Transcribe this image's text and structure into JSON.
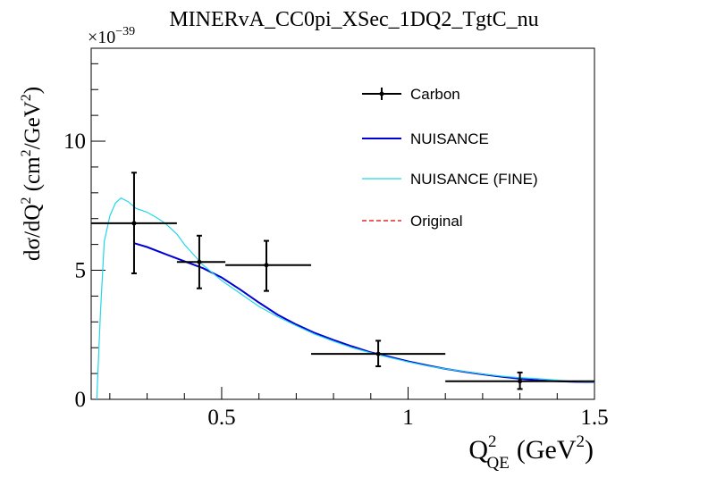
{
  "chart_data": {
    "type": "line",
    "title": "MINERvA_CC0pi_XSec_1DQ2_TgtC_nu",
    "xlabel": "Q",
    "xlabel_sub": "QE",
    "xlabel_sup": "2",
    "xlabel_unit_pre": "(GeV",
    "xlabel_unit_sup": "2",
    "xlabel_unit_post": ")",
    "ylabel": "dσ/dQ",
    "ylabel_sup": "2",
    "ylabel_unit_pre": " (cm",
    "ylabel_unit_sup1": "2",
    "ylabel_unit_mid": "/GeV",
    "ylabel_unit_sup2": "2",
    "ylabel_unit_post": ")",
    "y_exponent_base": "×10",
    "y_exponent": "−39",
    "xlim": [
      0.15,
      1.5
    ],
    "ylim": [
      0,
      13.6
    ],
    "x_ticks": [
      0.5,
      1,
      1.5
    ],
    "x_tick_labels": [
      "0.5",
      "1",
      "1.5"
    ],
    "y_ticks": [
      0,
      5,
      10
    ],
    "y_tick_labels": [
      "0",
      "5",
      "10"
    ],
    "grid": false,
    "legend_position": "top-right",
    "series": [
      {
        "name": "Carbon",
        "kind": "points",
        "color": "#000000",
        "points": [
          {
            "x": 0.265,
            "y": 6.82,
            "xlo": 0.15,
            "xhi": 0.38,
            "ylo": 4.88,
            "yhi": 8.78
          },
          {
            "x": 0.44,
            "y": 5.32,
            "xlo": 0.38,
            "xhi": 0.51,
            "ylo": 4.3,
            "yhi": 6.34
          },
          {
            "x": 0.62,
            "y": 5.2,
            "xlo": 0.51,
            "xhi": 0.74,
            "ylo": 4.2,
            "yhi": 6.14
          },
          {
            "x": 0.92,
            "y": 1.76,
            "xlo": 0.74,
            "xhi": 1.1,
            "ylo": 1.28,
            "yhi": 2.27
          },
          {
            "x": 1.3,
            "y": 0.7,
            "xlo": 1.1,
            "xhi": 1.5,
            "ylo": 0.4,
            "yhi": 1.04
          }
        ]
      },
      {
        "name": "NUISANCE",
        "kind": "line",
        "color": "#0000d4",
        "x": [
          0.265,
          0.3,
          0.35,
          0.4,
          0.45,
          0.5,
          0.55,
          0.6,
          0.65,
          0.7,
          0.75,
          0.8,
          0.85,
          0.9,
          0.95,
          1.0,
          1.05,
          1.1,
          1.15,
          1.2,
          1.25,
          1.3,
          1.35,
          1.4,
          1.45,
          1.5
        ],
        "y": [
          6.05,
          5.9,
          5.62,
          5.35,
          5.08,
          4.72,
          4.25,
          3.75,
          3.28,
          2.9,
          2.57,
          2.3,
          2.05,
          1.82,
          1.65,
          1.47,
          1.32,
          1.18,
          1.07,
          0.97,
          0.88,
          0.8,
          0.74,
          0.7,
          0.68,
          0.67
        ]
      },
      {
        "name": "NUISANCE (FINE)",
        "kind": "line",
        "color": "#22d8e8",
        "x": [
          0.165,
          0.175,
          0.185,
          0.2,
          0.215,
          0.23,
          0.25,
          0.27,
          0.3,
          0.33,
          0.35,
          0.38,
          0.4,
          0.45,
          0.5,
          0.55,
          0.6,
          0.65,
          0.7,
          0.75,
          0.8,
          0.85,
          0.9,
          0.95,
          1.0,
          1.05,
          1.1,
          1.15,
          1.2,
          1.25,
          1.3,
          1.35,
          1.4,
          1.45,
          1.5
        ],
        "y": [
          0.0,
          3.4,
          6.1,
          7.1,
          7.6,
          7.8,
          7.65,
          7.4,
          7.25,
          7.0,
          6.8,
          6.4,
          6.0,
          5.2,
          4.6,
          4.1,
          3.6,
          3.2,
          2.85,
          2.52,
          2.25,
          2.0,
          1.8,
          1.62,
          1.45,
          1.3,
          1.18,
          1.08,
          0.98,
          0.9,
          0.84,
          0.8,
          0.74,
          0.69,
          0.67
        ]
      },
      {
        "name": "Original",
        "kind": "line",
        "dashed": true,
        "color": "#e00000",
        "x": [],
        "y": []
      }
    ]
  }
}
